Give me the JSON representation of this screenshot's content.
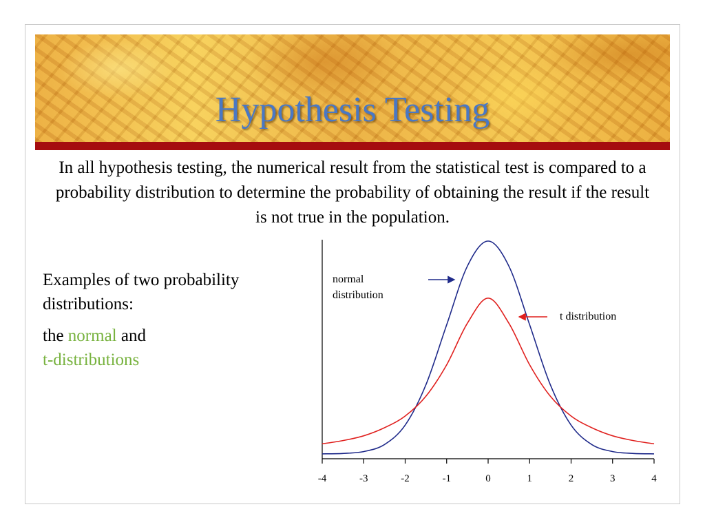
{
  "slide": {
    "title": "Hypothesis Testing",
    "intro": "In all hypothesis testing, the numerical result from the statistical test is compared to a probability distribution to determine the probability of obtaining the result if the result is not true in the population.",
    "examples_line": "Examples of two probability distributions:",
    "second_prefix": "the ",
    "second_normal": "normal",
    "second_and": " and",
    "second_t": "t-distributions",
    "colors": {
      "title": "#4a78c4",
      "rule": "#a50d0f",
      "highlight": "#77b23e"
    }
  },
  "chart_data": {
    "type": "line",
    "title": "",
    "xlabel": "",
    "ylabel": "",
    "xlim": [
      -4,
      4
    ],
    "x_ticks": [
      "-4",
      "-3",
      "-2",
      "-1",
      "0",
      "1",
      "2",
      "3",
      "4"
    ],
    "grid": false,
    "series": [
      {
        "name": "normal\ndistribution",
        "color": "#1f2a8a",
        "x": [
          -4,
          -3.5,
          -3,
          -2.5,
          -2,
          -1.5,
          -1,
          -0.5,
          0,
          0.5,
          1,
          1.5,
          2,
          2.5,
          3,
          3.5,
          4
        ],
        "y": [
          0.0001,
          0.0009,
          0.0044,
          0.0175,
          0.054,
          0.1295,
          0.242,
          0.3521,
          0.3989,
          0.3521,
          0.242,
          0.1295,
          0.054,
          0.0175,
          0.0044,
          0.0009,
          0.0001
        ]
      },
      {
        "name": "t distribution",
        "color": "#e0201e",
        "x": [
          -4,
          -3.5,
          -3,
          -2.5,
          -2,
          -1.5,
          -1,
          -0.5,
          0,
          0.5,
          1,
          1.5,
          2,
          2.5,
          3,
          3.5,
          4
        ],
        "y": [
          0.019,
          0.025,
          0.034,
          0.049,
          0.071,
          0.108,
          0.167,
          0.245,
          0.292,
          0.245,
          0.167,
          0.108,
          0.071,
          0.049,
          0.034,
          0.025,
          0.019
        ]
      }
    ],
    "annotations": [
      {
        "text": "normal\ndistribution",
        "points_to": "normal"
      },
      {
        "text": "t distribution",
        "points_to": "t"
      }
    ]
  }
}
